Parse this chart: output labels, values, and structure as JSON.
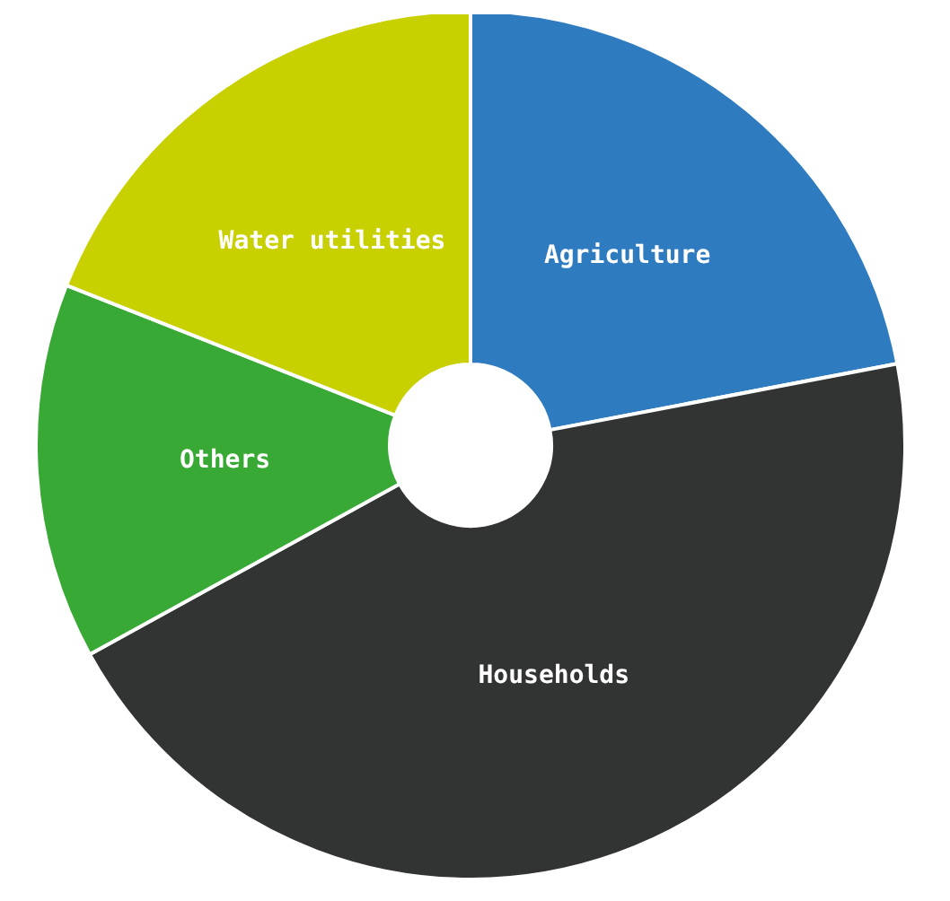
{
  "chart_data": {
    "type": "donut",
    "categories": [
      "Agriculture",
      "Households",
      "Others",
      "Water utilities"
    ],
    "values": [
      22,
      45,
      14,
      19
    ],
    "colors": [
      "#2e7bc0",
      "#323333",
      "#38a935",
      "#c8d000"
    ]
  }
}
